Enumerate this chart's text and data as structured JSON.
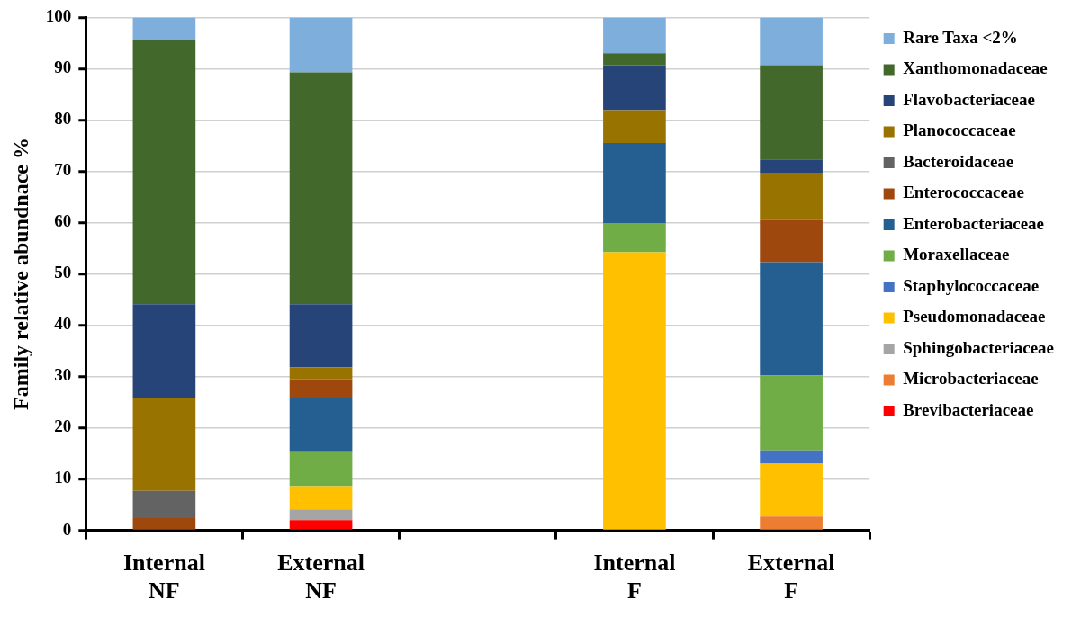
{
  "chart_data": {
    "type": "bar",
    "stacked": true,
    "ylabel": "Family relative abundnace %",
    "categories": [
      "Internal\nNF",
      "External\nNF",
      null,
      "Internal\nF",
      "External\nF"
    ],
    "ylim": [
      0,
      100
    ],
    "yticks": [
      0,
      10,
      20,
      30,
      40,
      50,
      60,
      70,
      80,
      90,
      100
    ],
    "grid": "y",
    "legend": "right",
    "series": [
      {
        "name": "Brevibacteriaceae",
        "color": "#ff0000",
        "values": [
          null,
          2.0,
          null,
          null,
          null
        ]
      },
      {
        "name": "Microbacteriaceae",
        "color": "#ed7d31",
        "values": [
          null,
          null,
          null,
          null,
          2.7
        ]
      },
      {
        "name": "Sphingobacteriaceae",
        "color": "#a5a5a5",
        "values": [
          null,
          2.1,
          null,
          null,
          null
        ]
      },
      {
        "name": "Pseudomonadaceae",
        "color": "#ffc000",
        "values": [
          null,
          4.5,
          null,
          54.2,
          10.3
        ]
      },
      {
        "name": "Staphylococcaceae",
        "color": "#4472c4",
        "values": [
          null,
          null,
          null,
          null,
          2.6
        ]
      },
      {
        "name": "Moraxellaceae",
        "color": "#70ad47",
        "values": [
          null,
          6.8,
          null,
          5.7,
          14.6
        ]
      },
      {
        "name": "Enterobacteriaceae",
        "color": "#255e91",
        "values": [
          null,
          10.5,
          null,
          15.6,
          22.1
        ]
      },
      {
        "name": "Enterococcaceae",
        "color": "#9e480e",
        "values": [
          2.4,
          3.6,
          null,
          null,
          8.2
        ]
      },
      {
        "name": "Bacteroidaceae",
        "color": "#636363",
        "values": [
          5.3,
          null,
          null,
          null,
          null
        ]
      },
      {
        "name": "Planococcaceae",
        "color": "#997300",
        "values": [
          18.2,
          2.3,
          null,
          6.4,
          9.1
        ]
      },
      {
        "name": "Flavobacteriaceae",
        "color": "#264478",
        "values": [
          18.2,
          12.3,
          null,
          8.8,
          2.7
        ]
      },
      {
        "name": "Xanthomonadaceae",
        "color": "#43682b",
        "values": [
          51.4,
          45.2,
          null,
          2.3,
          18.4
        ]
      },
      {
        "name": "Rare Taxa <2%",
        "color": "#7eaedc",
        "values": [
          4.5,
          10.7,
          null,
          7.0,
          9.3
        ]
      }
    ]
  }
}
